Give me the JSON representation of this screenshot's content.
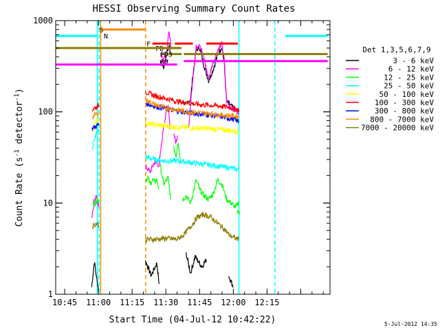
{
  "chart_data": {
    "type": "line",
    "title": "HESSI Observing Summary Count Rates",
    "xlabel": "Start Time (04-Jul-12 10:42:22)",
    "ylabel_main": "Count Rate (s",
    "ylabel_sup1": "-1",
    "ylabel_mid": " detector",
    "ylabel_sup2": "-1",
    "ylabel_end": ")",
    "yscale": "log",
    "ylim": [
      1,
      1000
    ],
    "xlim_minutes": [
      41,
      163
    ],
    "x_ticks": [
      {
        "t": 45,
        "label": "10:45"
      },
      {
        "t": 60,
        "label": "11:00"
      },
      {
        "t": 75,
        "label": "11:15"
      },
      {
        "t": 90,
        "label": "11:30"
      },
      {
        "t": 105,
        "label": "11:45"
      },
      {
        "t": 120,
        "label": "12:00"
      },
      {
        "t": 135,
        "label": "12:15"
      }
    ],
    "y_ticks": [
      {
        "v": 1,
        "label": "1"
      },
      {
        "v": 10,
        "label": "10"
      },
      {
        "v": 100,
        "label": "100"
      },
      {
        "v": 1000,
        "label": "1000"
      }
    ],
    "legend_title": "Det 1,3,5,6,7,9",
    "legend_placement": "right",
    "series": [
      {
        "name": "3 - 6 keV",
        "color": "#000000",
        "segments": [
          [
            [
              57.0,
              1.2
            ],
            [
              58.2,
              2.3
            ],
            [
              59.2,
              1.5
            ],
            [
              60.2,
              1.1
            ]
          ],
          [
            [
              81.0,
              2.3
            ],
            [
              83.5,
              1.6
            ],
            [
              86,
              2.2
            ],
            [
              87.0,
              1.3
            ]
          ],
          [
            [
              87.5,
              350
            ],
            [
              89,
              310
            ],
            [
              90,
              400
            ],
            [
              91.5,
              540
            ],
            [
              92,
              420
            ]
          ],
          [
            [
              97.5,
              130
            ],
            [
              99,
              120
            ],
            [
              101,
              138
            ],
            [
              102,
              250
            ],
            [
              103.5,
              470
            ],
            [
              105,
              510
            ],
            [
              107,
              320
            ],
            [
              109,
              220
            ],
            [
              111,
              290
            ],
            [
              113,
              420
            ],
            [
              115,
              520
            ],
            [
              116,
              330
            ],
            [
              117,
              130
            ],
            [
              120,
              110
            ],
            [
              122.5,
              100
            ]
          ],
          [
            [
              99,
              2.8
            ],
            [
              101,
              1.7
            ],
            [
              103,
              2.6
            ],
            [
              106,
              2.0
            ],
            [
              108,
              2.4
            ]
          ],
          [
            [
              118,
              1.6
            ],
            [
              120,
              1.2
            ]
          ]
        ]
      },
      {
        "name": "6 - 12 keV",
        "color": "#ff00ff",
        "segments": [
          [
            [
              57.0,
              7
            ],
            [
              58.2,
              10
            ],
            [
              59.2,
              12
            ],
            [
              60.2,
              9
            ]
          ],
          [
            [
              81.0,
              25
            ],
            [
              83,
              22
            ],
            [
              85,
              28
            ],
            [
              87,
              26
            ],
            [
              89,
              70
            ],
            [
              91,
              120
            ],
            [
              92,
              65
            ]
          ],
          [
            [
              87.5,
              430
            ],
            [
              89,
              380
            ],
            [
              90.5,
              500
            ],
            [
              91.5,
              780
            ],
            [
              92.2,
              500
            ]
          ],
          [
            [
              93.5,
              55
            ],
            [
              94.5,
              47
            ],
            [
              95.3,
              55
            ]
          ],
          [
            [
              100.2,
              70
            ],
            [
              102,
              240
            ],
            [
              103.5,
              510
            ],
            [
              105,
              570
            ],
            [
              107,
              380
            ],
            [
              109,
              230
            ],
            [
              111,
              350
            ],
            [
              113,
              470
            ],
            [
              115,
              560
            ],
            [
              116,
              360
            ],
            [
              117,
              130
            ],
            [
              120,
              105
            ],
            [
              122.5,
              100
            ]
          ]
        ]
      },
      {
        "name": "12 - 25 keV",
        "color": "#00ff00",
        "segments": [
          [
            [
              57.5,
              10.5
            ],
            [
              58.5,
              9.5
            ],
            [
              59.5,
              11.5
            ],
            [
              60.2,
              10
            ]
          ],
          [
            [
              81.0,
              18
            ],
            [
              82,
              19
            ],
            [
              83,
              16
            ],
            [
              84,
              18
            ],
            [
              85,
              17
            ],
            [
              86,
              18
            ],
            [
              87.0,
              14
            ]
          ],
          [
            [
              87.5,
              26
            ],
            [
              89,
              16
            ],
            [
              91,
              19
            ],
            [
              92.2,
              11
            ]
          ],
          [
            [
              93.5,
              40
            ],
            [
              94.5,
              33
            ],
            [
              95.5,
              48
            ],
            [
              96.5,
              28
            ]
          ],
          [
            [
              97.5,
              11
            ],
            [
              99,
              12
            ],
            [
              101,
              10
            ],
            [
              102,
              12.5
            ],
            [
              103.5,
              18
            ],
            [
              105,
              14
            ],
            [
              107,
              12
            ],
            [
              109,
              11
            ],
            [
              111,
              12.5
            ],
            [
              113,
              18
            ],
            [
              115,
              16
            ],
            [
              117,
              11
            ],
            [
              119,
              10
            ],
            [
              121,
              9
            ],
            [
              122.5,
              10
            ]
          ],
          [
            [
              121.5,
              8.2
            ],
            [
              123,
              7.8
            ]
          ]
        ]
      },
      {
        "name": "25 - 50 keV",
        "color": "#00ffff",
        "segments": [
          [
            [
              57.2,
              40
            ],
            [
              58.2,
              48
            ],
            [
              59.2,
              60
            ],
            [
              60.2,
              65
            ]
          ],
          [
            [
              81,
              32
            ],
            [
              85,
              30
            ],
            [
              90,
              29
            ],
            [
              95,
              29
            ],
            [
              100,
              28
            ],
            [
              105,
              27
            ],
            [
              110,
              26
            ],
            [
              115,
              25
            ],
            [
              120,
              24
            ],
            [
              122.5,
              23
            ]
          ]
        ]
      },
      {
        "name": "50 - 100 keV",
        "color": "#ffff00",
        "segments": [
          [
            [
              57.2,
              60
            ],
            [
              58.2,
              72
            ],
            [
              59.2,
              80
            ],
            [
              60.2,
              88
            ]
          ],
          [
            [
              81,
              75
            ],
            [
              85,
              72
            ],
            [
              90,
              70
            ],
            [
              95,
              68
            ],
            [
              100,
              67
            ],
            [
              105,
              66
            ],
            [
              110,
              65
            ],
            [
              115,
              64
            ],
            [
              120,
              62
            ],
            [
              122.5,
              60
            ]
          ]
        ]
      },
      {
        "name": "100 - 300 keV",
        "color": "#ff0000",
        "segments": [
          [
            [
              57.2,
              105
            ],
            [
              58.2,
              110
            ],
            [
              59.2,
              113
            ],
            [
              60.2,
              118
            ]
          ],
          [
            [
              81,
              165
            ],
            [
              85,
              150
            ],
            [
              90,
              140
            ],
            [
              95,
              130
            ],
            [
              100,
              125
            ],
            [
              105,
              120
            ],
            [
              110,
              118
            ],
            [
              115,
              115
            ],
            [
              120,
              110
            ],
            [
              122.5,
              105
            ]
          ]
        ]
      },
      {
        "name": "300 - 800 keV",
        "color": "#0000ff",
        "segments": [
          [
            [
              57.2,
              65
            ],
            [
              58.2,
              68
            ],
            [
              59.2,
              70
            ],
            [
              60.2,
              72
            ]
          ],
          [
            [
              81,
              125
            ],
            [
              85,
              115
            ],
            [
              90,
              108
            ],
            [
              95,
              102
            ],
            [
              100,
              98
            ],
            [
              105,
              95
            ],
            [
              110,
              92
            ],
            [
              115,
              88
            ],
            [
              120,
              83
            ],
            [
              122.5,
              78
            ]
          ]
        ]
      },
      {
        "name": "800 - 7000 keV",
        "color": "#ff8c00",
        "segments": [
          [
            [
              57.2,
              88
            ],
            [
              58.2,
              92
            ],
            [
              59.2,
              95
            ],
            [
              60.2,
              98
            ]
          ],
          [
            [
              81,
              135
            ],
            [
              85,
              120
            ],
            [
              90,
              110
            ],
            [
              95,
              105
            ],
            [
              100,
              100
            ],
            [
              105,
              98
            ],
            [
              110,
              95
            ],
            [
              115,
              92
            ],
            [
              120,
              90
            ],
            [
              122.5,
              88
            ]
          ]
        ]
      },
      {
        "name": "7000 - 20000 keV",
        "color": "#8b7d00",
        "segments": [
          [
            [
              57.2,
              5.5
            ],
            [
              58.2,
              5.8
            ],
            [
              59.2,
              6.0
            ],
            [
              60.2,
              5.7
            ]
          ],
          [
            [
              81,
              4.0
            ],
            [
              85,
              4.0
            ],
            [
              90,
              4.1
            ],
            [
              95,
              4.0
            ],
            [
              98,
              4.5
            ],
            [
              101,
              5.5
            ],
            [
              104,
              7.0
            ],
            [
              107,
              7.5
            ],
            [
              110,
              7.0
            ],
            [
              113,
              6.0
            ],
            [
              116,
              5.2
            ],
            [
              118,
              4.5
            ],
            [
              120,
              4.2
            ],
            [
              122.5,
              4.0
            ]
          ]
        ]
      }
    ],
    "flag_bars": [
      {
        "label": "",
        "color": "#00ffff",
        "y": 680,
        "x": [
          41,
          59.5
        ]
      },
      {
        "label": "",
        "color": "#00ffff",
        "y": 680,
        "x": [
          143,
          162
        ]
      },
      {
        "label": "S",
        "color": "#ff8c00",
        "y": 800,
        "x": [
          61,
          81
        ]
      },
      {
        "label": "N",
        "color": "#00ffff",
        "y": 680,
        "x": [
          63,
          63
        ]
      },
      {
        "label": "F",
        "color": "#ff0000",
        "y": 560,
        "x": [
          82,
          82
        ]
      },
      {
        "label": "",
        "color": "#ff0000",
        "y": 560,
        "x": [
          84,
          92
        ]
      },
      {
        "label": "",
        "color": "#ff0000",
        "y": 560,
        "x": [
          94,
          102
        ]
      },
      {
        "label": "",
        "color": "#ff0000",
        "y": 560,
        "x": [
          108,
          122
        ]
      },
      {
        "label": "FD",
        "color": "#8b7d00",
        "y": 500,
        "x": [
          86,
          96
        ]
      },
      {
        "label": "",
        "color": "#8b7d00",
        "y": 500,
        "x": [
          41,
          97
        ]
      },
      {
        "label": "FD3",
        "color": "#8b7d00",
        "y": 430,
        "x": [
          88,
          97
        ]
      },
      {
        "label": "",
        "color": "#8b7d00",
        "y": 430,
        "x": [
          98,
          162
        ]
      },
      {
        "label": "A0",
        "color": "#ff00ff",
        "y": 360,
        "x": [
          88,
          91
        ]
      },
      {
        "label": "",
        "color": "#ff00ff",
        "y": 330,
        "x": [
          41,
          95
        ]
      },
      {
        "label": "",
        "color": "#ff00ff",
        "y": 360,
        "x": [
          98,
          162
        ]
      }
    ],
    "vlines": [
      {
        "t": 59.5,
        "color": "#00ffff",
        "style": "solid"
      },
      {
        "t": 60.3,
        "color": "#00ffff",
        "style": "dashed"
      },
      {
        "t": 61.0,
        "color": "#ff8c00",
        "style": "solid"
      },
      {
        "t": 81.0,
        "color": "#ff8c00",
        "style": "dashed"
      },
      {
        "t": 122.5,
        "color": "#00ffff",
        "style": "solid"
      },
      {
        "t": 138.5,
        "color": "#00ffff",
        "style": "dashed"
      }
    ],
    "footer_date": "5-Jul-2012 14:35"
  }
}
